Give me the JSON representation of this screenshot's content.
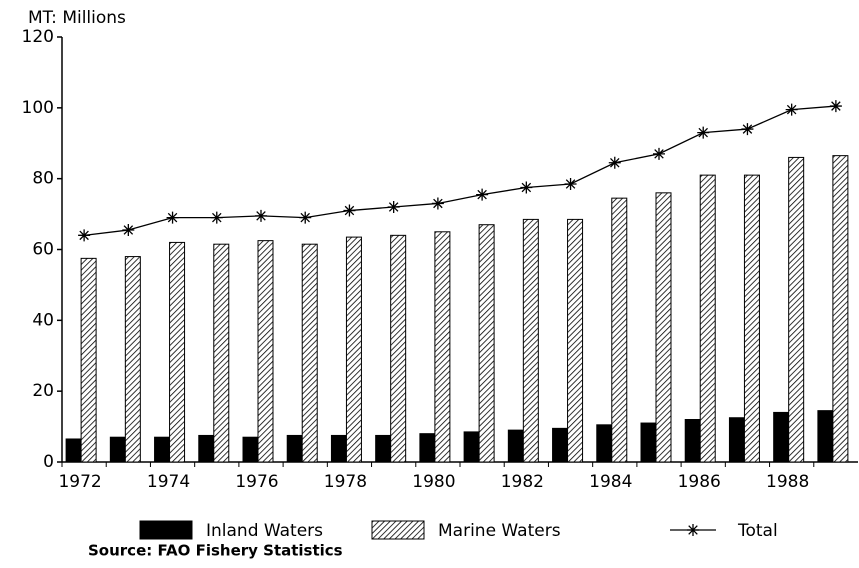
{
  "chart_data": {
    "type": "bar",
    "y_axis_label": "MT: Millions",
    "source": "Source: FAO Fishery Statistics",
    "categories": [
      "1972",
      null,
      "1974",
      null,
      "1976",
      null,
      "1978",
      null,
      "1980",
      null,
      "1982",
      null,
      "1984",
      null,
      "1986",
      null,
      "1988",
      null
    ],
    "series": [
      {
        "name": "Inland Waters",
        "type": "bar",
        "color": "#000000",
        "pattern": "solid",
        "values": [
          6.5,
          7,
          7,
          7.5,
          7,
          7.5,
          7.5,
          7.5,
          8,
          8.5,
          9,
          9.5,
          10.5,
          11,
          12,
          12.5,
          14,
          14.5
        ]
      },
      {
        "name": "Marine Waters",
        "type": "bar",
        "color": "#000000",
        "pattern": "hatch",
        "values": [
          57.5,
          58,
          62,
          61.5,
          62.5,
          61.5,
          63.5,
          64,
          65,
          67,
          68.5,
          68.5,
          74.5,
          76,
          81,
          81,
          86,
          86.5
        ]
      },
      {
        "name": "Total",
        "type": "line",
        "color": "#000000",
        "marker": "asterisk",
        "values": [
          64,
          65.5,
          69,
          69,
          69.5,
          69,
          71,
          72,
          73,
          75.5,
          77.5,
          78.5,
          84.5,
          87,
          93,
          94,
          99.5,
          100.5
        ]
      }
    ],
    "ylim": [
      0,
      120
    ],
    "yticks": [
      0,
      20,
      40,
      60,
      80,
      100,
      120
    ],
    "grid": false
  }
}
